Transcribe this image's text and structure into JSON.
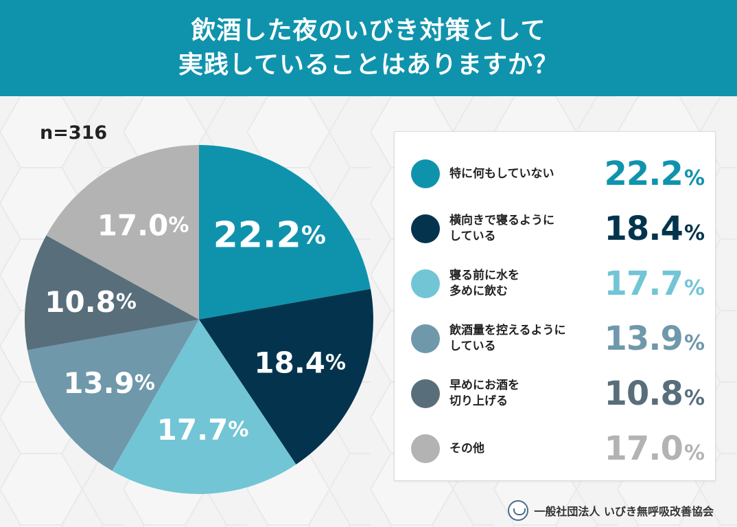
{
  "header": {
    "line1": "飲酒した夜のいびき対策として",
    "line2": "実践していることはありますか？"
  },
  "sample_size": "n=316",
  "chart_data": {
    "type": "pie",
    "unit": "%",
    "slices": [
      {
        "label": "特に何もしていない",
        "value": 22.2,
        "value_text": "22.2",
        "color": "#0f93ad",
        "label_color": "#0f93ad"
      },
      {
        "label": "横向きで寝るようにしている",
        "value": 18.4,
        "value_text": "18.4",
        "color": "#04344d",
        "label_color": "#04344d"
      },
      {
        "label": "寝る前に水を多めに飲む",
        "value": 17.7,
        "value_text": "17.7",
        "color": "#72c5d5",
        "label_color": "#72c5d5"
      },
      {
        "label": "飲酒量を控えるようにしている",
        "value": 13.9,
        "value_text": "13.9",
        "color": "#6f98ab",
        "label_color": "#6f98ab"
      },
      {
        "label": "早めにお酒を切り上げる",
        "value": 10.8,
        "value_text": "10.8",
        "color": "#586e7b",
        "label_color": "#586e7b"
      },
      {
        "label": "その他",
        "value": 17.0,
        "value_text": "17.0",
        "color": "#b3b3b3",
        "label_color": "#b3b3b3"
      }
    ]
  },
  "legend": {
    "rows": [
      {
        "label": "特に何もしていない"
      },
      {
        "label": "横向きで寝るように\nしている"
      },
      {
        "label": "寝る前に水を\n多めに飲む"
      },
      {
        "label": "飲酒量を控えるように\nしている"
      },
      {
        "label": "早めにお酒を\n切り上げる"
      },
      {
        "label": "その他"
      }
    ]
  },
  "footer": {
    "organization": "一般社団法人 いびき無呼吸改善協会",
    "logo_icon": "association-logo-icon"
  }
}
